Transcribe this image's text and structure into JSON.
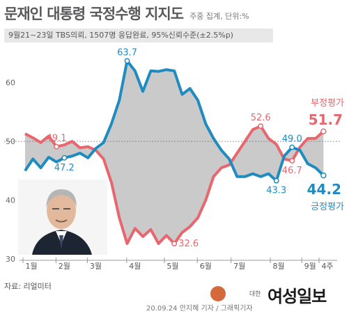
{
  "header": {
    "title": "문재인 대통령 국정수행 지지도",
    "subtitle": "주중 집계, 단위:%"
  },
  "banner": "9월21~23일 TBS의뢰, 1507명 응답완료, 95%신뢰수준(±2.5%p)",
  "source": "자료: 리얼미터",
  "credit": "20.09.24  안지혜 기자 / 그래픽기자",
  "logo": {
    "small": "대한",
    "name": "여성일보"
  },
  "colors": {
    "negative": "#e8666d",
    "positive": "#1f8bbf",
    "gap": "#bdbdbd"
  },
  "chart_data": {
    "type": "line",
    "title": "",
    "xlabel": "",
    "ylabel": "",
    "ylim": [
      30,
      66
    ],
    "yticks": [
      30,
      40,
      50,
      60
    ],
    "x": [
      1,
      2,
      3,
      4,
      5,
      6,
      7,
      8,
      9,
      10,
      11,
      12,
      13,
      14,
      15,
      16,
      17,
      18,
      19,
      20,
      21,
      22,
      23,
      24,
      25,
      26,
      27,
      28,
      29,
      30,
      31,
      32,
      33,
      34,
      35,
      36,
      37,
      38,
      39
    ],
    "month_ticks": [
      {
        "label": "1월",
        "x": 1.8
      },
      {
        "label": "2월",
        "x": 6.0
      },
      {
        "label": "3월",
        "x": 10.0
      },
      {
        "label": "4월",
        "x": 15.0
      },
      {
        "label": "5월",
        "x": 19.8
      },
      {
        "label": "6월",
        "x": 24.0
      },
      {
        "label": "7월",
        "x": 28.3
      },
      {
        "label": "8월",
        "x": 33.3
      },
      {
        "label": "9월",
        "x": 37.3
      },
      {
        "label": "4주",
        "x": 39.5
      }
    ],
    "series": [
      {
        "name": "부정평가",
        "color": "#e8666d",
        "values": [
          51.3,
          50.6,
          49.8,
          50.9,
          49.1,
          49.4,
          50.0,
          48.9,
          49.1,
          48.5,
          47.0,
          43.0,
          37.0,
          32.6,
          35.2,
          33.8,
          35.0,
          32.6,
          34.0,
          32.6,
          34.5,
          35.5,
          37.0,
          40.0,
          44.0,
          45.5,
          46.0,
          48.0,
          50.0,
          52.0,
          52.6,
          50.5,
          49.5,
          47.0,
          46.7,
          49.0,
          50.5,
          50.5,
          51.7
        ]
      },
      {
        "name": "긍정평가",
        "color": "#1f8bbf",
        "values": [
          45.0,
          47.0,
          45.5,
          47.3,
          46.5,
          47.2,
          47.5,
          48.0,
          47.2,
          48.8,
          49.8,
          53.0,
          57.0,
          63.7,
          62.0,
          58.5,
          62.0,
          61.9,
          62.2,
          62.0,
          58.0,
          59.0,
          57.0,
          53.0,
          50.5,
          48.5,
          47.0,
          44.0,
          44.0,
          44.5,
          44.0,
          44.5,
          43.3,
          47.5,
          49.0,
          48.5,
          46.2,
          45.5,
          44.2
        ]
      }
    ],
    "annotations": [
      {
        "series": 0,
        "index": 4,
        "label": "49.1",
        "pos": "above"
      },
      {
        "series": 1,
        "index": 5,
        "label": "47.2",
        "pos": "below"
      },
      {
        "series": 1,
        "index": 13,
        "label": "63.7",
        "pos": "above"
      },
      {
        "series": 0,
        "index": 19,
        "label": "32.6",
        "pos": "right"
      },
      {
        "series": 0,
        "index": 30,
        "label": "52.6",
        "pos": "above"
      },
      {
        "series": 1,
        "index": 32,
        "label": "43.3",
        "pos": "below"
      },
      {
        "series": 1,
        "index": 34,
        "label": "49.0",
        "pos": "above"
      },
      {
        "series": 0,
        "index": 34,
        "label": "46.7",
        "pos": "below"
      }
    ],
    "end_labels": {
      "negative_name": "부정평가",
      "negative_value": "51.7",
      "positive_name": "긍정평가",
      "positive_value": "44.2"
    }
  }
}
